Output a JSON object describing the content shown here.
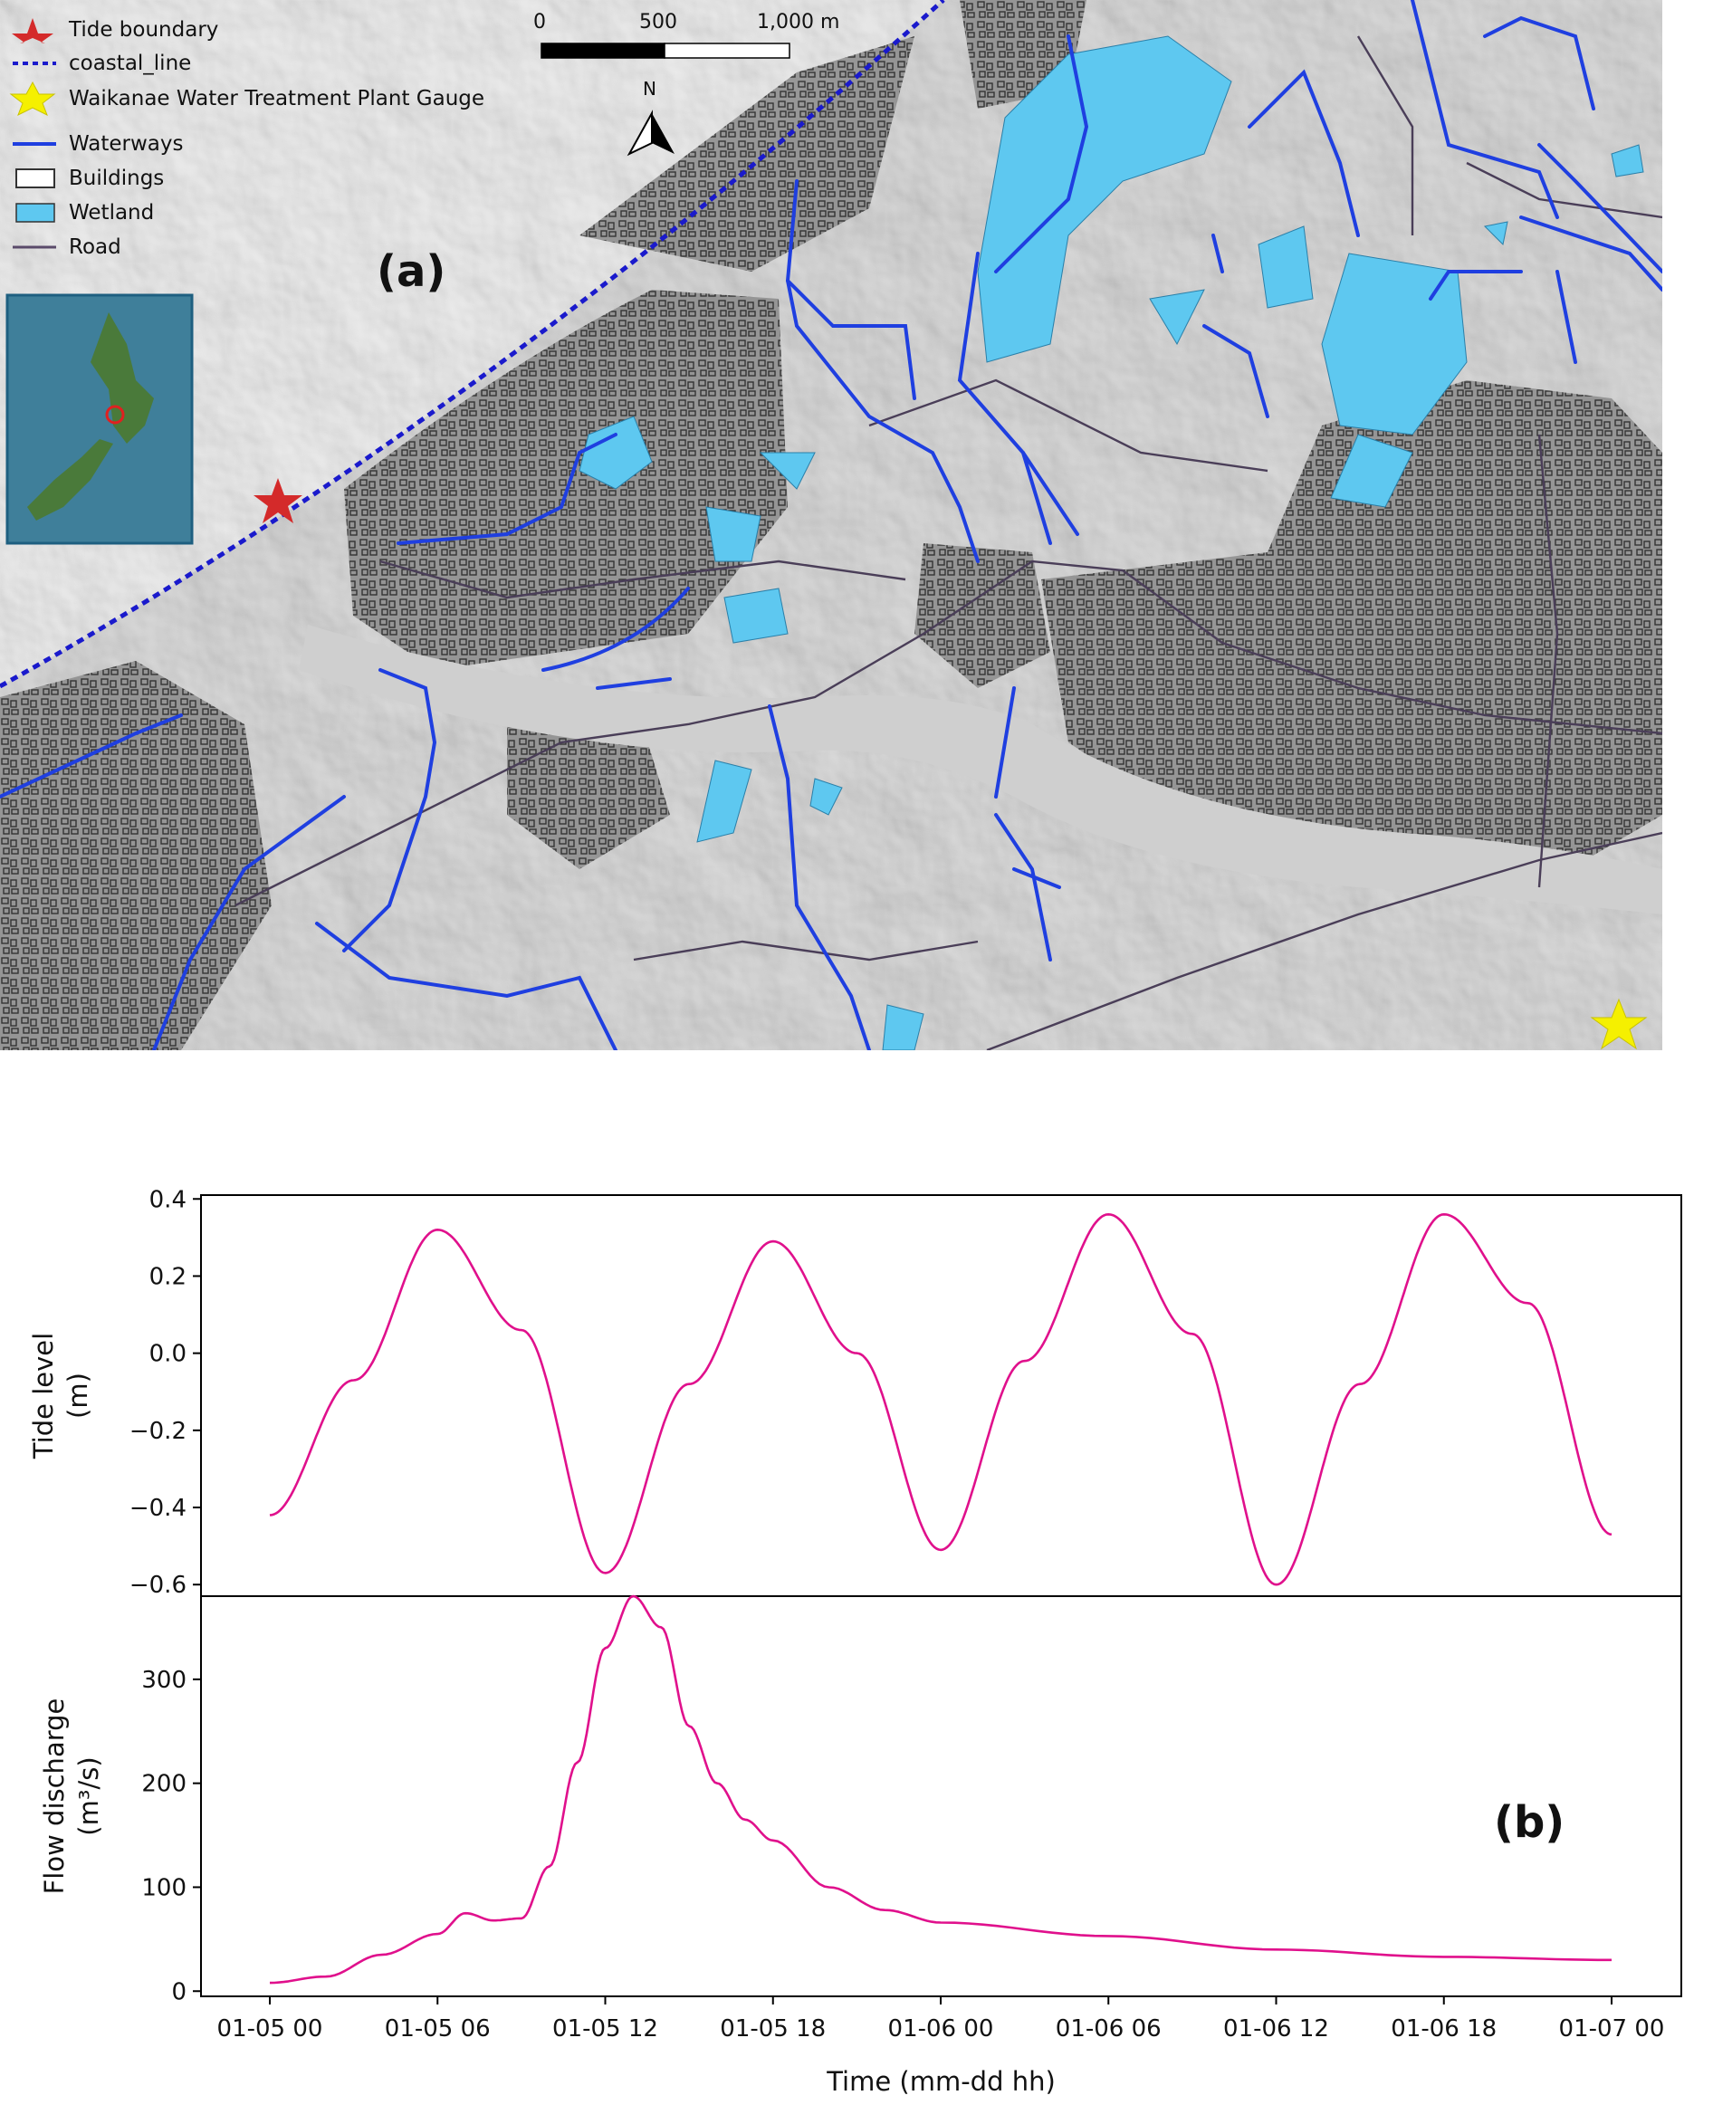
{
  "figure": {
    "panel_a_label": "(a)",
    "panel_b_label": "(b)"
  },
  "map": {
    "legend": [
      {
        "label": "Tide boundary",
        "icon": "red-star-icon",
        "color": "#d42a2a"
      },
      {
        "label": "coastal_line",
        "icon": "dashed-line-icon",
        "color": "#1a1acc"
      },
      {
        "label": "Waikanae Water Treatment Plant Gauge",
        "icon": "yellow-star-icon",
        "color": "#f5f000"
      },
      {
        "label": "Waterways",
        "icon": "line-icon",
        "color": "#1f3fe0"
      },
      {
        "label": "Buildings",
        "icon": "outline-box-icon",
        "color": "#333333"
      },
      {
        "label": "Wetland",
        "icon": "filled-box-icon",
        "color": "#5ec8f0"
      },
      {
        "label": "Road",
        "icon": "line-icon",
        "color": "#5a4a6a"
      }
    ],
    "scale_bar": {
      "labels": [
        "0",
        "500",
        "1,000 m"
      ]
    },
    "north_arrow": {
      "label": "N"
    },
    "colors": {
      "waterway": "#1f3fe0",
      "wetland": "#5ec8f0",
      "road": "#4a3e58",
      "terrain": "#d5d5d5",
      "coast": "#1a1acc"
    }
  },
  "chart_data": [
    {
      "type": "line",
      "ylabel": [
        "Tide level",
        "(m)"
      ],
      "ylim": [
        -0.63,
        0.41
      ],
      "yticks": [
        "0.4",
        "0.2",
        "0.0",
        "−0.2",
        "−0.4",
        "−0.6"
      ],
      "color": "#e0108c",
      "x_hours": [
        0,
        3,
        6,
        9,
        12,
        15,
        18,
        21,
        24,
        27,
        30,
        33,
        36,
        39,
        42,
        45,
        48
      ],
      "series": [
        {
          "values": [
            -0.42,
            -0.07,
            0.32,
            0.06,
            -0.57,
            -0.08,
            0.29,
            0.0,
            -0.51,
            -0.02,
            0.36,
            0.05,
            -0.6,
            -0.08,
            0.36,
            0.13,
            -0.47
          ]
        }
      ]
    },
    {
      "type": "line",
      "ylabel": [
        "Flow discharge",
        "(m³/s)"
      ],
      "xlabel": "Time (mm-dd hh)",
      "ylim": [
        -5,
        380
      ],
      "yticks": [
        "300",
        "200",
        "100",
        "0"
      ],
      "xticks": [
        "01-05 00",
        "01-05 06",
        "01-05 12",
        "01-05 18",
        "01-06 00",
        "01-06 06",
        "01-06 12",
        "01-06 18",
        "01-07 00"
      ],
      "color": "#e0108c",
      "x_hours": [
        0,
        2,
        4,
        6,
        7,
        8,
        9,
        10,
        11,
        12,
        13,
        14,
        15,
        16,
        17,
        18,
        20,
        22,
        24,
        30,
        36,
        42,
        48
      ],
      "series": [
        {
          "values": [
            8,
            14,
            35,
            55,
            75,
            68,
            70,
            120,
            220,
            330,
            380,
            350,
            255,
            200,
            165,
            145,
            100,
            78,
            66,
            53,
            40,
            33,
            30
          ]
        }
      ]
    }
  ]
}
